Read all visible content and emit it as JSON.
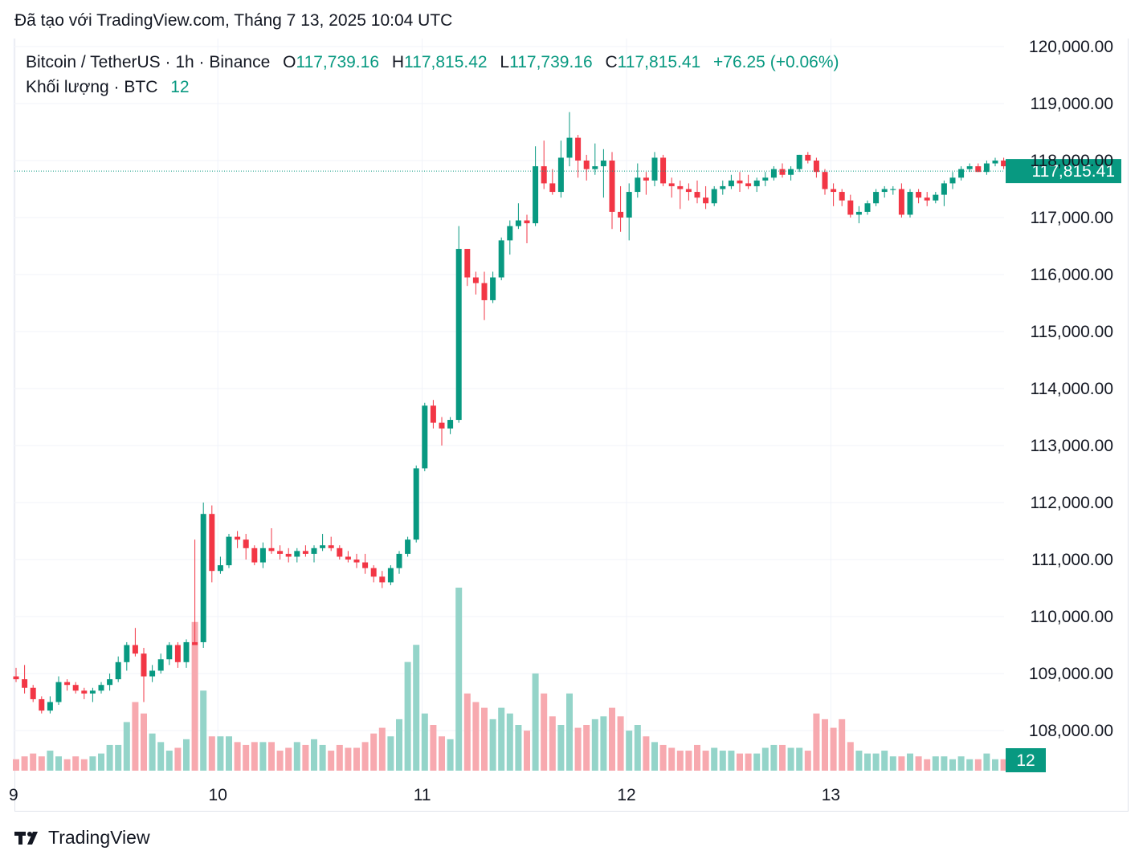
{
  "caption": "Đã tạo với TradingView.com, Tháng 7 13, 2025 10:04 UTC",
  "legend": {
    "symbol": "Bitcoin / TetherUS · 1h · Binance",
    "o_label": "O",
    "o_value": "117,739.16",
    "h_label": "H",
    "h_value": "117,815.42",
    "l_label": "L",
    "l_value": "117,739.16",
    "c_label": "C",
    "c_value": "117,815.41",
    "change": "+76.25 (+0.06%)",
    "volume_label": "Khối lượng · BTC",
    "volume_value": "12"
  },
  "footer": {
    "brand": "TradingView"
  },
  "colors": {
    "up": "#089981",
    "down": "#f23645",
    "up_volume": "#94d4c9",
    "down_volume": "#f7a9af",
    "grid": "#f0f3fa"
  },
  "chart_data": {
    "type": "candlestick",
    "symbol": "Bitcoin / TetherUS",
    "interval": "1h",
    "exchange": "Binance",
    "y_ticks": [
      "120,000.00",
      "119,000.00",
      "118,000.00",
      "117,000.00",
      "116,000.00",
      "115,000.00",
      "114,000.00",
      "113,000.00",
      "112,000.00",
      "111,000.00",
      "110,000.00",
      "109,000.00",
      "108,000.00"
    ],
    "ylim": [
      107300,
      120400
    ],
    "x_ticks": [
      {
        "label": "9",
        "bar": -0.3
      },
      {
        "label": "10",
        "bar": 23.7
      },
      {
        "label": "11",
        "bar": 47.7
      },
      {
        "label": "12",
        "bar": 71.7
      },
      {
        "label": "13",
        "bar": 95.7
      }
    ],
    "last_price_label": "117,815.41",
    "last_price": 117815.41,
    "volume_label": "12",
    "volume_max": 32,
    "candles": [
      [
        108950,
        109100,
        108850,
        108900,
        2
      ],
      [
        108900,
        109150,
        108650,
        108750,
        2.5
      ],
      [
        108750,
        108800,
        108500,
        108550,
        3
      ],
      [
        108550,
        108600,
        108300,
        108350,
        2.5
      ],
      [
        108350,
        108600,
        108300,
        108500,
        3.5
      ],
      [
        108500,
        108950,
        108450,
        108850,
        2.5
      ],
      [
        108850,
        108900,
        108700,
        108800,
        2
      ],
      [
        108800,
        108850,
        108650,
        108700,
        2.5
      ],
      [
        108700,
        108750,
        108550,
        108650,
        2
      ],
      [
        108650,
        108750,
        108500,
        108700,
        2.5
      ],
      [
        108700,
        108850,
        108650,
        108800,
        3
      ],
      [
        108800,
        109000,
        108700,
        108900,
        4.5
      ],
      [
        108900,
        109300,
        108850,
        109200,
        4.5
      ],
      [
        109200,
        109550,
        109050,
        109500,
        8.5
      ],
      [
        109500,
        109800,
        109300,
        109350,
        12
      ],
      [
        109350,
        109450,
        108500,
        108950,
        10
      ],
      [
        108950,
        109150,
        108850,
        109050,
        6.5
      ],
      [
        109050,
        109350,
        109000,
        109250,
        5
      ],
      [
        109250,
        109550,
        109150,
        109500,
        3.5
      ],
      [
        109500,
        109550,
        109100,
        109200,
        4
      ],
      [
        109200,
        109600,
        109100,
        109550,
        5.5
      ],
      [
        109550,
        111350,
        109500,
        109500,
        26
      ],
      [
        109550,
        112000,
        109450,
        111800,
        14
      ],
      [
        111800,
        111950,
        110600,
        110800,
        6
      ],
      [
        110800,
        111050,
        110750,
        110900,
        6
      ],
      [
        110900,
        111450,
        110850,
        111400,
        6
      ],
      [
        111400,
        111500,
        111200,
        111350,
        5
      ],
      [
        111350,
        111450,
        111000,
        111200,
        4.5
      ],
      [
        111200,
        111250,
        110900,
        110950,
        5
      ],
      [
        110950,
        111300,
        110850,
        111200,
        5
      ],
      [
        111200,
        111550,
        111100,
        111150,
        5
      ],
      [
        111150,
        111250,
        111000,
        111100,
        3.5
      ],
      [
        111100,
        111200,
        110950,
        111050,
        4
      ],
      [
        111050,
        111200,
        110950,
        111150,
        5
      ],
      [
        111150,
        111250,
        111050,
        111100,
        4.5
      ],
      [
        111100,
        111250,
        110950,
        111200,
        5.5
      ],
      [
        111200,
        111450,
        111150,
        111250,
        4.5
      ],
      [
        111250,
        111400,
        111150,
        111200,
        3.5
      ],
      [
        111200,
        111250,
        111000,
        111050,
        4.5
      ],
      [
        111050,
        111150,
        110950,
        111000,
        4
      ],
      [
        111000,
        111100,
        110850,
        110950,
        4
      ],
      [
        110950,
        111100,
        110750,
        110850,
        5
      ],
      [
        110850,
        110900,
        110600,
        110700,
        6.5
      ],
      [
        110700,
        110800,
        110500,
        110600,
        7.5
      ],
      [
        110600,
        110900,
        110550,
        110850,
        6
      ],
      [
        110850,
        111150,
        110750,
        111100,
        9
      ],
      [
        111100,
        111400,
        111050,
        111350,
        19
      ],
      [
        111350,
        112650,
        111300,
        112600,
        22
      ],
      [
        112600,
        113750,
        112550,
        113700,
        10
      ],
      [
        113700,
        113800,
        113300,
        113400,
        8
      ],
      [
        113400,
        113500,
        113000,
        113300,
        6
      ],
      [
        113300,
        113500,
        113200,
        113450,
        5.5
      ],
      [
        113450,
        116850,
        113400,
        116450,
        32
      ],
      [
        116450,
        116450,
        115800,
        115950,
        13.5
      ],
      [
        115950,
        116050,
        115650,
        115850,
        12
      ],
      [
        115850,
        116050,
        115200,
        115550,
        11
      ],
      [
        115550,
        116050,
        115500,
        115950,
        9
      ],
      [
        115950,
        116650,
        115900,
        116600,
        11
      ],
      [
        116600,
        116950,
        116350,
        116850,
        10
      ],
      [
        116850,
        117250,
        116800,
        116950,
        8
      ],
      [
        116950,
        117050,
        116550,
        116900,
        7
      ],
      [
        116900,
        118250,
        116850,
        117900,
        17
      ],
      [
        117900,
        118350,
        117500,
        117600,
        13.5
      ],
      [
        117600,
        117850,
        117400,
        117450,
        9.5
      ],
      [
        117450,
        118350,
        117350,
        118050,
        8
      ],
      [
        118050,
        118850,
        117900,
        118400,
        13.5
      ],
      [
        118400,
        118450,
        117700,
        118000,
        7.5
      ],
      [
        118000,
        118100,
        117650,
        117850,
        8
      ],
      [
        117850,
        118300,
        117750,
        117900,
        9
      ],
      [
        117900,
        118200,
        117350,
        118000,
        9.5
      ],
      [
        118000,
        118150,
        116800,
        117100,
        11
      ],
      [
        117100,
        117550,
        116750,
        117000,
        9.5
      ],
      [
        117000,
        117600,
        116600,
        117450,
        7
      ],
      [
        117450,
        117950,
        117350,
        117700,
        8
      ],
      [
        117700,
        117800,
        117400,
        117650,
        6
      ],
      [
        117650,
        118150,
        117550,
        118050,
        5
      ],
      [
        118050,
        118100,
        117550,
        117600,
        4.5
      ],
      [
        117600,
        117700,
        117350,
        117550,
        4
      ],
      [
        117550,
        117650,
        117150,
        117500,
        3.5
      ],
      [
        117500,
        117600,
        117300,
        117450,
        3.5
      ],
      [
        117450,
        117650,
        117250,
        117350,
        4.5
      ],
      [
        117350,
        117550,
        117150,
        117250,
        3.5
      ],
      [
        117250,
        117550,
        117200,
        117500,
        4
      ],
      [
        117500,
        117650,
        117400,
        117550,
        3.5
      ],
      [
        117550,
        117750,
        117500,
        117650,
        3.5
      ],
      [
        117650,
        117800,
        117450,
        117600,
        3
      ],
      [
        117600,
        117750,
        117500,
        117550,
        3
      ],
      [
        117550,
        117700,
        117450,
        117650,
        3
      ],
      [
        117650,
        117800,
        117550,
        117700,
        4
      ],
      [
        117700,
        117900,
        117650,
        117850,
        4.5
      ],
      [
        117850,
        117950,
        117700,
        117750,
        4.5
      ],
      [
        117750,
        117900,
        117650,
        117850,
        4
      ],
      [
        117850,
        118100,
        117800,
        118100,
        4
      ],
      [
        118100,
        118150,
        117950,
        118000,
        3.5
      ],
      [
        118000,
        118050,
        117700,
        117800,
        10
      ],
      [
        117800,
        117850,
        117400,
        117500,
        9
      ],
      [
        117500,
        117600,
        117200,
        117450,
        7.5
      ],
      [
        117450,
        117500,
        117200,
        117300,
        9
      ],
      [
        117300,
        117400,
        117000,
        117050,
        5
      ],
      [
        117050,
        117200,
        116900,
        117100,
        3.5
      ],
      [
        117100,
        117300,
        117050,
        117250,
        3
      ],
      [
        117250,
        117500,
        117200,
        117450,
        3
      ],
      [
        117450,
        117550,
        117350,
        117500,
        3.5
      ],
      [
        117500,
        117550,
        117400,
        117500,
        2.5
      ],
      [
        117500,
        117600,
        117000,
        117050,
        2.5
      ],
      [
        117050,
        117500,
        117000,
        117450,
        3
      ],
      [
        117450,
        117500,
        117250,
        117350,
        2.5
      ],
      [
        117350,
        117450,
        117200,
        117300,
        2
      ],
      [
        117300,
        117450,
        117250,
        117400,
        2.5
      ],
      [
        117400,
        117650,
        117200,
        117600,
        2.5
      ],
      [
        117600,
        117800,
        117500,
        117700,
        2
      ],
      [
        117700,
        117900,
        117650,
        117850,
        2.5
      ],
      [
        117850,
        117950,
        117800,
        117900,
        2
      ],
      [
        117900,
        117950,
        117800,
        117800,
        2
      ],
      [
        117800,
        118000,
        117750,
        117950,
        3
      ],
      [
        117950,
        118050,
        117900,
        118000,
        2
      ],
      [
        118000,
        118050,
        117850,
        117900,
        2
      ],
      [
        117900,
        117950,
        117750,
        117750,
        1
      ],
      [
        117739.16,
        117815.42,
        117739.16,
        117815.41,
        0.5
      ]
    ]
  }
}
